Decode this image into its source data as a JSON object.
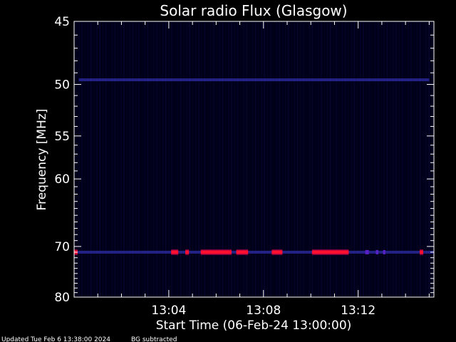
{
  "chart_data": {
    "type": "heatmap",
    "title": "Solar radio Flux (Glasgow)",
    "xlabel": "Start Time (06-Feb-24 13:00:00)",
    "ylabel": "Frequency [MHz]",
    "x_unit": "minutes after 13:00:00",
    "xlim": [
      0,
      15.2
    ],
    "ylim": [
      45,
      80
    ],
    "y_reciprocal_axis": true,
    "x_ticks": [
      {
        "value": 4,
        "label": "13:04"
      },
      {
        "value": 8,
        "label": "13:08"
      },
      {
        "value": 12,
        "label": "13:12"
      }
    ],
    "y_ticks": [
      {
        "value": 45,
        "label": "45"
      },
      {
        "value": 50,
        "label": "50"
      },
      {
        "value": 55,
        "label": "55"
      },
      {
        "value": 60,
        "label": "60"
      },
      {
        "value": 70,
        "label": "70"
      },
      {
        "value": 80,
        "label": "80"
      }
    ],
    "background_color": "#000018",
    "interference_bands": [
      {
        "freq": 49.6,
        "start": 0.2,
        "end": 15.0,
        "intensity": "low"
      },
      {
        "freq": 71.0,
        "start": 0.0,
        "end": 15.2,
        "intensity": "low"
      }
    ],
    "strong_segments": [
      {
        "freq": 71.0,
        "start": 0.0,
        "end": 0.15
      },
      {
        "freq": 71.0,
        "start": 4.1,
        "end": 4.4
      },
      {
        "freq": 71.0,
        "start": 4.7,
        "end": 4.85
      },
      {
        "freq": 71.0,
        "start": 5.35,
        "end": 6.65
      },
      {
        "freq": 71.0,
        "start": 6.85,
        "end": 7.35
      },
      {
        "freq": 71.0,
        "start": 8.35,
        "end": 8.8
      },
      {
        "freq": 71.0,
        "start": 10.05,
        "end": 11.6
      },
      {
        "freq": 71.0,
        "start": 14.6,
        "end": 14.75
      }
    ],
    "weak_segments": [
      {
        "freq": 71.0,
        "start": 12.3,
        "end": 12.45
      },
      {
        "freq": 71.0,
        "start": 12.75,
        "end": 12.85
      },
      {
        "freq": 71.0,
        "start": 13.05,
        "end": 13.15
      }
    ]
  },
  "footer": {
    "updated": "Updated Tue Feb  6 13:38:00 2024",
    "bg_note": "BG subtracted"
  }
}
